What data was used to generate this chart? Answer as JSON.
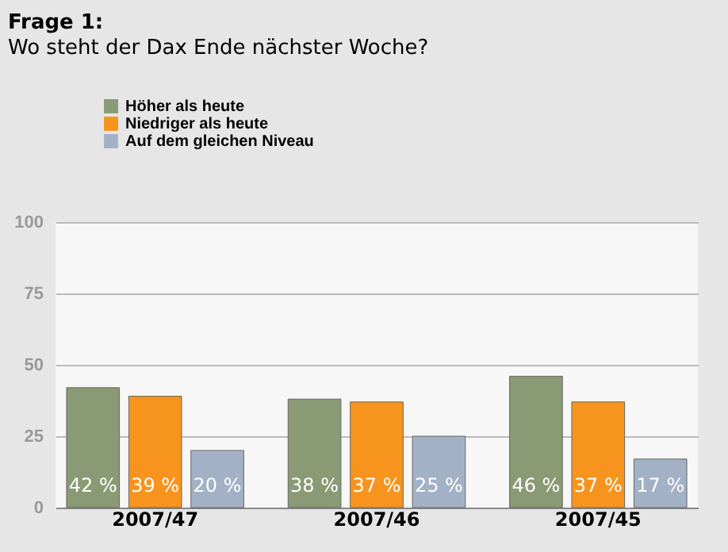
{
  "chart_data": {
    "type": "bar",
    "title": "Frage 1:",
    "subtitle": "Wo steht der Dax Ende nächster Woche?",
    "categories": [
      "2007/47",
      "2007/46",
      "2007/45"
    ],
    "series": [
      {
        "name": "Höher als heute",
        "color": "#8a9a74",
        "values": [
          42,
          38,
          46
        ],
        "value_labels": [
          "42 %",
          "38 %",
          "46 %"
        ]
      },
      {
        "name": "Niedriger als heute",
        "color": "#f7941d",
        "values": [
          39,
          37,
          37
        ],
        "value_labels": [
          "39 %",
          "37 %",
          "37 %"
        ]
      },
      {
        "name": "Auf dem gleichen Niveau",
        "color": "#a3b1c6",
        "values": [
          20,
          25,
          17
        ],
        "value_labels": [
          "20 %",
          "25 %",
          "17 %"
        ]
      }
    ],
    "ylim": [
      0,
      100
    ],
    "yticks": [
      0,
      25,
      50,
      75,
      100
    ],
    "grid": "y",
    "legend": "top left"
  }
}
